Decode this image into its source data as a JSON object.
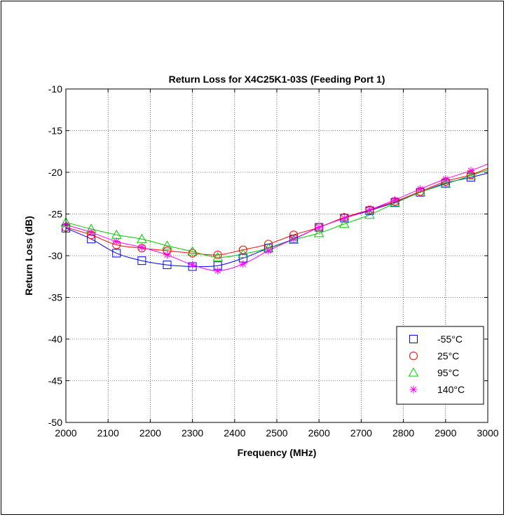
{
  "chart_data": {
    "type": "line",
    "title": "Return Loss for X4C25K1-03S (Feeding Port 1)",
    "xlabel": "Frequency (MHz)",
    "ylabel": "Return Loss (dB)",
    "xlim": [
      2000,
      3000
    ],
    "ylim": [
      -50,
      -10
    ],
    "xticks": [
      2000,
      2100,
      2200,
      2300,
      2400,
      2500,
      2600,
      2700,
      2800,
      2900,
      3000
    ],
    "yticks": [
      -10,
      -15,
      -20,
      -25,
      -30,
      -35,
      -40,
      -45,
      -50
    ],
    "grid": true,
    "legend_position": "bottom-right",
    "x": [
      2000,
      2060,
      2120,
      2180,
      2240,
      2300,
      2360,
      2420,
      2480,
      2540,
      2600,
      2660,
      2720,
      2780,
      2840,
      2900,
      2960
    ],
    "line_x_end": 3000,
    "series": [
      {
        "name": "-55°C",
        "color": "#0000ff",
        "marker": "square",
        "values": [
          -26.7,
          -28.0,
          -29.7,
          -30.6,
          -31.1,
          -31.3,
          -31.2,
          -30.3,
          -29.1,
          -28.0,
          -26.6,
          -25.5,
          -24.6,
          -23.6,
          -22.4,
          -21.3,
          -20.6
        ],
        "end_value": -20.1
      },
      {
        "name": "25°C",
        "color": "#ff0000",
        "marker": "circle",
        "values": [
          -26.6,
          -27.5,
          -28.7,
          -29.1,
          -29.4,
          -29.7,
          -29.9,
          -29.3,
          -28.6,
          -27.5,
          -26.6,
          -25.4,
          -24.5,
          -23.5,
          -22.3,
          -21.1,
          -20.3
        ],
        "end_value": -19.5
      },
      {
        "name": "95°C",
        "color": "#00cc00",
        "marker": "triangle",
        "values": [
          -26.0,
          -26.8,
          -27.5,
          -28.0,
          -28.8,
          -29.5,
          -30.2,
          -29.8,
          -29.1,
          -28.1,
          -27.3,
          -26.2,
          -25.1,
          -23.7,
          -22.4,
          -21.4,
          -20.4
        ],
        "end_value": -19.7
      },
      {
        "name": "140°C",
        "color": "#ff00ff",
        "marker": "asterisk",
        "values": [
          -26.3,
          -27.2,
          -28.3,
          -29.0,
          -29.9,
          -31.1,
          -31.8,
          -31.0,
          -29.4,
          -28.0,
          -26.6,
          -25.5,
          -24.5,
          -23.3,
          -22.0,
          -20.8,
          -19.8
        ],
        "end_value": -19.0
      }
    ]
  }
}
